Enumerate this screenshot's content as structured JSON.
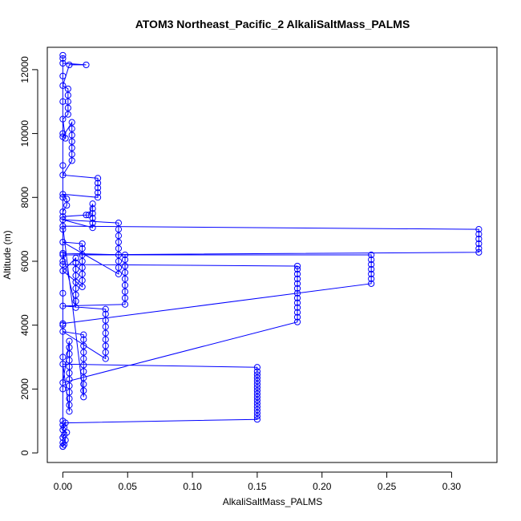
{
  "chart_data": {
    "type": "scatter",
    "title": "ATOM3 Northeast_Pacific_2 AlkaliSaltMass_PALMS",
    "xlabel": "AlkaliSaltMass_PALMS",
    "ylabel": "Altitude (m)",
    "xlim": [
      -0.012,
      0.335
    ],
    "ylim": [
      -300,
      12700
    ],
    "xticks": [
      0.0,
      0.05,
      0.1,
      0.15,
      0.2,
      0.25,
      0.3
    ],
    "xtick_labels": [
      "0.00",
      "0.05",
      "0.10",
      "0.15",
      "0.20",
      "0.25",
      "0.30"
    ],
    "yticks": [
      0,
      2000,
      4000,
      6000,
      8000,
      10000,
      12000
    ],
    "ytick_labels": [
      "0",
      "2000",
      "4000",
      "6000",
      "8000",
      "10000",
      "12000"
    ],
    "color": "#0000ff",
    "marker": "open-circle",
    "connected": true,
    "series": [
      {
        "values_desc": "profile",
        "points": [
          [
            0.0,
            200
          ],
          [
            0.001,
            260
          ],
          [
            0.0,
            320
          ],
          [
            0.002,
            400
          ],
          [
            0.0,
            480
          ],
          [
            0.001,
            560
          ],
          [
            0.003,
            640
          ],
          [
            0.0,
            720
          ],
          [
            0.001,
            800
          ],
          [
            0.0,
            880
          ],
          [
            0.002,
            940
          ],
          [
            0.15,
            1050
          ],
          [
            0.15,
            1150
          ],
          [
            0.15,
            1250
          ],
          [
            0.15,
            1350
          ],
          [
            0.15,
            1450
          ],
          [
            0.15,
            1550
          ],
          [
            0.15,
            1650
          ],
          [
            0.15,
            1750
          ],
          [
            0.15,
            1850
          ],
          [
            0.15,
            1950
          ],
          [
            0.15,
            2050
          ],
          [
            0.15,
            2150
          ],
          [
            0.15,
            2250
          ],
          [
            0.15,
            2350
          ],
          [
            0.15,
            2450
          ],
          [
            0.15,
            2550
          ],
          [
            0.15,
            2680
          ],
          [
            0.0,
            2780
          ],
          [
            0.005,
            1300
          ],
          [
            0.005,
            1500
          ],
          [
            0.005,
            1700
          ],
          [
            0.005,
            1900
          ],
          [
            0.005,
            2100
          ],
          [
            0.005,
            2300
          ],
          [
            0.005,
            2500
          ],
          [
            0.005,
            2700
          ],
          [
            0.005,
            2900
          ],
          [
            0.005,
            3100
          ],
          [
            0.005,
            3300
          ],
          [
            0.005,
            3500
          ],
          [
            0.0,
            2200
          ],
          [
            0.181,
            4100
          ],
          [
            0.181,
            4250
          ],
          [
            0.181,
            4400
          ],
          [
            0.181,
            4550
          ],
          [
            0.181,
            4700
          ],
          [
            0.181,
            4850
          ],
          [
            0.181,
            5000
          ],
          [
            0.181,
            5150
          ],
          [
            0.181,
            5300
          ],
          [
            0.181,
            5450
          ],
          [
            0.181,
            5600
          ],
          [
            0.181,
            5750
          ],
          [
            0.181,
            5850
          ],
          [
            0.0,
            5900
          ],
          [
            0.0,
            4050
          ],
          [
            0.238,
            5300
          ],
          [
            0.238,
            5450
          ],
          [
            0.238,
            5600
          ],
          [
            0.238,
            5750
          ],
          [
            0.238,
            5900
          ],
          [
            0.238,
            6050
          ],
          [
            0.238,
            6200
          ],
          [
            0.0,
            6200
          ],
          [
            0.321,
            6280
          ],
          [
            0.321,
            6400
          ],
          [
            0.321,
            6550
          ],
          [
            0.321,
            6700
          ],
          [
            0.321,
            6850
          ],
          [
            0.321,
            7000
          ],
          [
            0.0,
            7100
          ],
          [
            0.016,
            1750
          ],
          [
            0.016,
            1950
          ],
          [
            0.016,
            2150
          ],
          [
            0.016,
            2350
          ],
          [
            0.016,
            2550
          ],
          [
            0.016,
            2750
          ],
          [
            0.016,
            2950
          ],
          [
            0.016,
            3150
          ],
          [
            0.016,
            3350
          ],
          [
            0.016,
            3550
          ],
          [
            0.016,
            3700
          ],
          [
            0.0,
            3800
          ],
          [
            0.033,
            2950
          ],
          [
            0.033,
            3150
          ],
          [
            0.033,
            3350
          ],
          [
            0.033,
            3550
          ],
          [
            0.033,
            3750
          ],
          [
            0.033,
            3950
          ],
          [
            0.033,
            4150
          ],
          [
            0.033,
            4350
          ],
          [
            0.033,
            4500
          ],
          [
            0.0,
            4600
          ],
          [
            0.048,
            4650
          ],
          [
            0.048,
            4850
          ],
          [
            0.048,
            5050
          ],
          [
            0.048,
            5250
          ],
          [
            0.048,
            5450
          ],
          [
            0.048,
            5650
          ],
          [
            0.048,
            5850
          ],
          [
            0.048,
            6050
          ],
          [
            0.048,
            6200
          ],
          [
            0.0,
            6250
          ],
          [
            0.01,
            4550
          ],
          [
            0.01,
            4750
          ],
          [
            0.01,
            4950
          ],
          [
            0.01,
            5150
          ],
          [
            0.01,
            5350
          ],
          [
            0.01,
            5550
          ],
          [
            0.01,
            5750
          ],
          [
            0.01,
            5950
          ],
          [
            0.01,
            6100
          ],
          [
            0.0,
            5700
          ],
          [
            0.015,
            5200
          ],
          [
            0.015,
            5400
          ],
          [
            0.015,
            5600
          ],
          [
            0.015,
            5800
          ],
          [
            0.015,
            6000
          ],
          [
            0.015,
            6200
          ],
          [
            0.015,
            6400
          ],
          [
            0.015,
            6550
          ],
          [
            0.0,
            6600
          ],
          [
            0.043,
            5600
          ],
          [
            0.043,
            5800
          ],
          [
            0.043,
            6000
          ],
          [
            0.043,
            6200
          ],
          [
            0.043,
            6400
          ],
          [
            0.043,
            6600
          ],
          [
            0.043,
            6800
          ],
          [
            0.043,
            7000
          ],
          [
            0.043,
            7200
          ],
          [
            0.0,
            7300
          ],
          [
            0.023,
            7050
          ],
          [
            0.023,
            7200
          ],
          [
            0.023,
            7350
          ],
          [
            0.023,
            7500
          ],
          [
            0.023,
            7650
          ],
          [
            0.023,
            7800
          ],
          [
            0.02,
            7450
          ],
          [
            0.018,
            7450
          ],
          [
            0.0,
            7400
          ],
          [
            0.0,
            7550
          ],
          [
            0.003,
            7750
          ],
          [
            0.003,
            7950
          ],
          [
            0.0,
            8100
          ],
          [
            0.027,
            8000
          ],
          [
            0.027,
            8150
          ],
          [
            0.027,
            8300
          ],
          [
            0.027,
            8450
          ],
          [
            0.027,
            8600
          ],
          [
            0.0,
            8700
          ],
          [
            0.007,
            9150
          ],
          [
            0.007,
            9350
          ],
          [
            0.007,
            9550
          ],
          [
            0.007,
            9750
          ],
          [
            0.007,
            9950
          ],
          [
            0.007,
            10150
          ],
          [
            0.007,
            10350
          ],
          [
            0.0,
            9900
          ],
          [
            0.002,
            9850
          ],
          [
            0.0,
            10450
          ],
          [
            0.004,
            10600
          ],
          [
            0.004,
            10800
          ],
          [
            0.004,
            11000
          ],
          [
            0.004,
            11200
          ],
          [
            0.004,
            11400
          ],
          [
            0.0,
            11500
          ],
          [
            0.005,
            12150
          ],
          [
            0.018,
            12150
          ],
          [
            0.0,
            12200
          ],
          [
            0.0,
            12350
          ],
          [
            0.0,
            12450
          ],
          [
            0.0,
            11800
          ],
          [
            0.0,
            11000
          ],
          [
            0.0,
            10000
          ],
          [
            0.0,
            9000
          ],
          [
            0.0,
            8000
          ],
          [
            0.0,
            7000
          ],
          [
            0.0,
            6000
          ],
          [
            0.0,
            5000
          ],
          [
            0.0,
            4000
          ],
          [
            0.0,
            3000
          ],
          [
            0.0,
            2000
          ],
          [
            0.0,
            1000
          ],
          [
            0.0,
            200
          ]
        ]
      }
    ]
  }
}
